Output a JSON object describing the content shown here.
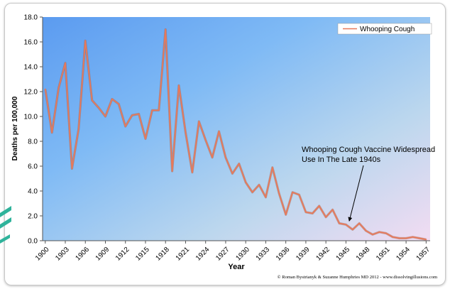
{
  "chart_data": {
    "type": "line",
    "title": "",
    "xlabel": "Year",
    "ylabel": "Deaths per 100,000",
    "ylim": [
      0,
      18
    ],
    "yticks": [
      "0.0",
      "2.0",
      "4.0",
      "6.0",
      "8.0",
      "10.0",
      "12.0",
      "14.0",
      "16.0",
      "18.0"
    ],
    "xticks": [
      "1900",
      "1903",
      "1906",
      "1909",
      "1912",
      "1915",
      "1918",
      "1921",
      "1924",
      "1927",
      "1930",
      "1933",
      "1936",
      "1939",
      "1942",
      "1945",
      "1948",
      "1951",
      "1954",
      "1957"
    ],
    "legend_position": "top-right",
    "series": [
      {
        "name": "Whooping Cough",
        "color": "#e8795a",
        "x": [
          1900,
          1901,
          1902,
          1903,
          1904,
          1905,
          1906,
          1907,
          1908,
          1909,
          1910,
          1911,
          1912,
          1913,
          1914,
          1915,
          1916,
          1917,
          1918,
          1919,
          1920,
          1921,
          1922,
          1923,
          1924,
          1925,
          1926,
          1927,
          1928,
          1929,
          1930,
          1931,
          1932,
          1933,
          1934,
          1935,
          1936,
          1937,
          1938,
          1939,
          1940,
          1941,
          1942,
          1943,
          1944,
          1945,
          1946,
          1947,
          1948,
          1949,
          1950,
          1951,
          1952,
          1953,
          1954,
          1955,
          1956,
          1957
        ],
        "values": [
          12.2,
          8.7,
          12.3,
          14.3,
          5.8,
          9.0,
          16.1,
          11.3,
          10.7,
          10.0,
          11.4,
          11.0,
          9.2,
          10.1,
          10.2,
          8.2,
          10.5,
          10.5,
          17.0,
          5.6,
          12.5,
          8.7,
          5.5,
          9.6,
          8.1,
          6.7,
          8.8,
          6.7,
          5.4,
          6.2,
          4.7,
          3.9,
          4.5,
          3.5,
          5.9,
          3.8,
          2.1,
          3.9,
          3.7,
          2.3,
          2.2,
          2.8,
          1.9,
          2.5,
          1.4,
          1.3,
          0.9,
          1.4,
          0.8,
          0.5,
          0.7,
          0.6,
          0.3,
          0.2,
          0.2,
          0.3,
          0.2,
          0.1
        ]
      }
    ],
    "annotation": {
      "lines": [
        "Whooping Cough  Vaccine Widespread",
        "Use In The Late 1940s"
      ],
      "arrow_to": [
        1945.5,
        1.6
      ]
    },
    "credit": "© Roman Bystrianyk & Suzanne Humphries MD 2012 - www.dissolvingillusions.com"
  }
}
